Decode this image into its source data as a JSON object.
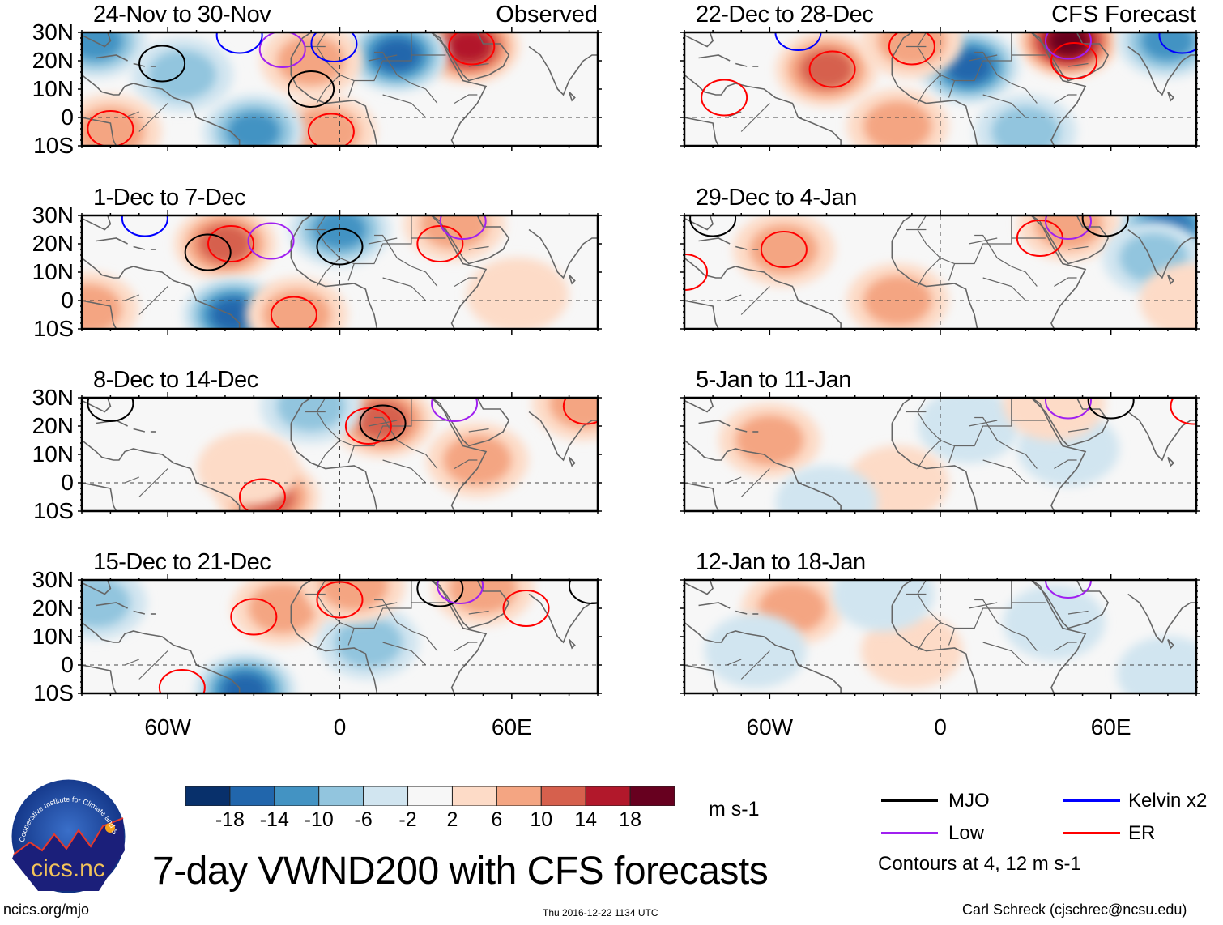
{
  "chart_data": {
    "type": "heatmap",
    "title": "7-day VWND200 with CFS forecasts",
    "variable": "VWND200 (200-hPa meridional wind anomaly)",
    "units": "m s-1",
    "lat_range": [
      -10,
      30
    ],
    "lon_range": [
      -90,
      90
    ],
    "ytick_labels": [
      "30N",
      "20N",
      "10N",
      "0",
      "10S"
    ],
    "ytick_values": [
      30,
      20,
      10,
      0,
      -10
    ],
    "xtick_labels": [
      "60W",
      "0",
      "60E"
    ],
    "xtick_values": [
      -60,
      0,
      60
    ],
    "colorbar": {
      "levels": [
        -18,
        -14,
        -10,
        -6,
        -2,
        2,
        6,
        10,
        14,
        18
      ],
      "labels": [
        "-18",
        "-14",
        "-10",
        "-6",
        "-2",
        "2",
        "6",
        "10",
        "14",
        "18"
      ],
      "colors": [
        "#08306b",
        "#2166ac",
        "#4393c3",
        "#92c5de",
        "#d1e5f0",
        "#f7f7f7",
        "#fddbc7",
        "#f4a582",
        "#d6604d",
        "#b2182b",
        "#67001f"
      ]
    },
    "legend": {
      "placement": "bottom-right",
      "entries": [
        {
          "name": "MJO",
          "color": "#000000"
        },
        {
          "name": "Kelvin x2",
          "color": "#0000ff"
        },
        {
          "name": "Low",
          "color": "#a020f0"
        },
        {
          "name": "ER",
          "color": "#ff0000"
        }
      ],
      "note": "Contours at 4, 12 m s-1"
    },
    "panels": [
      {
        "title": "24-Nov to 30-Nov",
        "subtitle": "Observed",
        "column": "left",
        "anomalies": [
          {
            "lon": 45,
            "lat": 25,
            "value": 15
          },
          {
            "lon": 20,
            "lat": 22,
            "value": -15
          },
          {
            "lon": -10,
            "lat": 20,
            "value": 9
          },
          {
            "lon": -55,
            "lat": 15,
            "value": -6
          },
          {
            "lon": -80,
            "lat": -5,
            "value": 8
          },
          {
            "lon": -5,
            "lat": -5,
            "value": 8
          },
          {
            "lon": -30,
            "lat": -5,
            "value": -12
          },
          {
            "lon": -85,
            "lat": 27,
            "value": -10
          }
        ],
        "contours": [
          {
            "type": "MJO",
            "lon": -62,
            "lat": 19
          },
          {
            "type": "MJO",
            "lon": -10,
            "lat": 10
          },
          {
            "type": "ER",
            "lon": -80,
            "lat": -4
          },
          {
            "type": "ER",
            "lon": -3,
            "lat": -5
          },
          {
            "type": "ER",
            "lon": 46,
            "lat": 25
          },
          {
            "type": "Low",
            "lon": -20,
            "lat": 24
          },
          {
            "type": "Kelvin x2",
            "lon": -35,
            "lat": 29
          },
          {
            "type": "Kelvin x2",
            "lon": -2,
            "lat": 26
          }
        ]
      },
      {
        "title": "1-Dec to 7-Dec",
        "subtitle": "",
        "column": "left",
        "anomalies": [
          {
            "lon": -40,
            "lat": 20,
            "value": 10
          },
          {
            "lon": 0,
            "lat": 25,
            "value": -10
          },
          {
            "lon": -37,
            "lat": -5,
            "value": -15
          },
          {
            "lon": -15,
            "lat": -5,
            "value": 9
          },
          {
            "lon": 40,
            "lat": 27,
            "value": 9
          },
          {
            "lon": 62,
            "lat": 2,
            "value": 5
          },
          {
            "lon": -88,
            "lat": -3,
            "value": 8
          }
        ],
        "contours": [
          {
            "type": "ER",
            "lon": -38,
            "lat": 20
          },
          {
            "type": "ER",
            "lon": -16,
            "lat": -5
          },
          {
            "type": "ER",
            "lon": 35,
            "lat": 20
          },
          {
            "type": "MJO",
            "lon": -46,
            "lat": 17
          },
          {
            "type": "MJO",
            "lon": 0,
            "lat": 19
          },
          {
            "type": "Low",
            "lon": -24,
            "lat": 21
          },
          {
            "type": "Low",
            "lon": 43,
            "lat": 28
          },
          {
            "type": "Kelvin x2",
            "lon": -68,
            "lat": 29
          }
        ]
      },
      {
        "title": "8-Dec to 14-Dec",
        "subtitle": "",
        "column": "left",
        "anomalies": [
          {
            "lon": 15,
            "lat": 22,
            "value": 12
          },
          {
            "lon": -10,
            "lat": 27,
            "value": -8
          },
          {
            "lon": -25,
            "lat": -5,
            "value": 10
          },
          {
            "lon": 48,
            "lat": 8,
            "value": 6
          },
          {
            "lon": 85,
            "lat": 28,
            "value": 6
          },
          {
            "lon": -32,
            "lat": 5,
            "value": 4
          }
        ],
        "contours": [
          {
            "type": "ER",
            "lon": 10,
            "lat": 20
          },
          {
            "type": "MJO",
            "lon": 15,
            "lat": 21
          },
          {
            "type": "ER",
            "lon": -27,
            "lat": -5
          },
          {
            "type": "MJO",
            "lon": -80,
            "lat": 28
          },
          {
            "type": "Low",
            "lon": 40,
            "lat": 28
          },
          {
            "type": "ER",
            "lon": 86,
            "lat": 27
          }
        ]
      },
      {
        "title": "15-Dec to 21-Dec",
        "subtitle": "",
        "column": "left",
        "anomalies": [
          {
            "lon": -20,
            "lat": 20,
            "value": 9
          },
          {
            "lon": 10,
            "lat": 8,
            "value": -8
          },
          {
            "lon": -33,
            "lat": -9,
            "value": -16
          },
          {
            "lon": 5,
            "lat": 28,
            "value": 8
          },
          {
            "lon": 50,
            "lat": 27,
            "value": 9
          },
          {
            "lon": -85,
            "lat": 22,
            "value": -9
          }
        ],
        "contours": [
          {
            "type": "ER",
            "lon": -30,
            "lat": 17
          },
          {
            "type": "ER",
            "lon": 0,
            "lat": 23
          },
          {
            "type": "ER",
            "lon": 65,
            "lat": 20
          },
          {
            "type": "ER",
            "lon": -55,
            "lat": -8
          },
          {
            "type": "MJO",
            "lon": 35,
            "lat": 27
          },
          {
            "type": "MJO",
            "lon": 88,
            "lat": 28
          },
          {
            "type": "Low",
            "lon": 42,
            "lat": 28
          }
        ]
      },
      {
        "title": "22-Dec to 28-Dec",
        "subtitle": "CFS Forecast",
        "column": "right",
        "anomalies": [
          {
            "lon": 45,
            "lat": 27,
            "value": 20
          },
          {
            "lon": 10,
            "lat": 18,
            "value": -14
          },
          {
            "lon": -40,
            "lat": 17,
            "value": 10
          },
          {
            "lon": -10,
            "lat": 27,
            "value": 8
          },
          {
            "lon": -15,
            "lat": -3,
            "value": 6
          },
          {
            "lon": 80,
            "lat": 27,
            "value": -10
          },
          {
            "lon": 30,
            "lat": -5,
            "value": -8
          }
        ],
        "contours": [
          {
            "type": "ER",
            "lon": -38,
            "lat": 17
          },
          {
            "type": "ER",
            "lon": -10,
            "lat": 25
          },
          {
            "type": "ER",
            "lon": 47,
            "lat": 20
          },
          {
            "type": "ER",
            "lon": -76,
            "lat": 7
          },
          {
            "type": "Low",
            "lon": 45,
            "lat": 27
          },
          {
            "type": "Kelvin x2",
            "lon": -50,
            "lat": 30
          },
          {
            "type": "Kelvin x2",
            "lon": 85,
            "lat": 29
          }
        ]
      },
      {
        "title": "29-Dec to 4-Jan",
        "subtitle": "",
        "column": "right",
        "anomalies": [
          {
            "lon": 80,
            "lat": 25,
            "value": -14
          },
          {
            "lon": 45,
            "lat": 27,
            "value": 9
          },
          {
            "lon": -55,
            "lat": 18,
            "value": 7
          },
          {
            "lon": -15,
            "lat": 0,
            "value": 7
          },
          {
            "lon": 75,
            "lat": 15,
            "value": -8
          },
          {
            "lon": 88,
            "lat": 0,
            "value": 4
          }
        ],
        "contours": [
          {
            "type": "ER",
            "lon": -55,
            "lat": 18
          },
          {
            "type": "ER",
            "lon": 35,
            "lat": 22
          },
          {
            "type": "ER",
            "lon": -90,
            "lat": 10
          },
          {
            "type": "Low",
            "lon": 45,
            "lat": 28
          },
          {
            "type": "MJO",
            "lon": -80,
            "lat": 29
          },
          {
            "type": "MJO",
            "lon": 58,
            "lat": 29
          }
        ]
      },
      {
        "title": "5-Jan to 11-Jan",
        "subtitle": "",
        "column": "right",
        "anomalies": [
          {
            "lon": -60,
            "lat": 15,
            "value": 7
          },
          {
            "lon": 10,
            "lat": 20,
            "value": -5
          },
          {
            "lon": 45,
            "lat": 12,
            "value": -4
          },
          {
            "lon": -15,
            "lat": 0,
            "value": 4
          },
          {
            "lon": 40,
            "lat": 28,
            "value": 4
          },
          {
            "lon": -40,
            "lat": -7,
            "value": -5
          }
        ],
        "contours": [
          {
            "type": "Low",
            "lon": 45,
            "lat": 29
          },
          {
            "type": "MJO",
            "lon": 60,
            "lat": 29
          },
          {
            "type": "ER",
            "lon": 89,
            "lat": 27
          }
        ]
      },
      {
        "title": "12-Jan to 18-Jan",
        "subtitle": "",
        "column": "right",
        "anomalies": [
          {
            "lon": -52,
            "lat": 20,
            "value": 6
          },
          {
            "lon": -10,
            "lat": 5,
            "value": 4
          },
          {
            "lon": 40,
            "lat": 15,
            "value": -4
          },
          {
            "lon": -65,
            "lat": 5,
            "value": -4
          },
          {
            "lon": 80,
            "lat": -3,
            "value": -4
          },
          {
            "lon": -20,
            "lat": 25,
            "value": -4
          }
        ],
        "contours": [
          {
            "type": "Low",
            "lon": 45,
            "lat": 30
          }
        ]
      }
    ]
  },
  "footer": {
    "logo_text": "cics.nc",
    "logo_ring_text": "Cooperative Institute for Climate and Satellites",
    "website": "ncics.org/mjo",
    "timestamp": "Thu 2016-12-22 1134 UTC",
    "author": "Carl Schreck (cjschrec@ncsu.edu)"
  }
}
